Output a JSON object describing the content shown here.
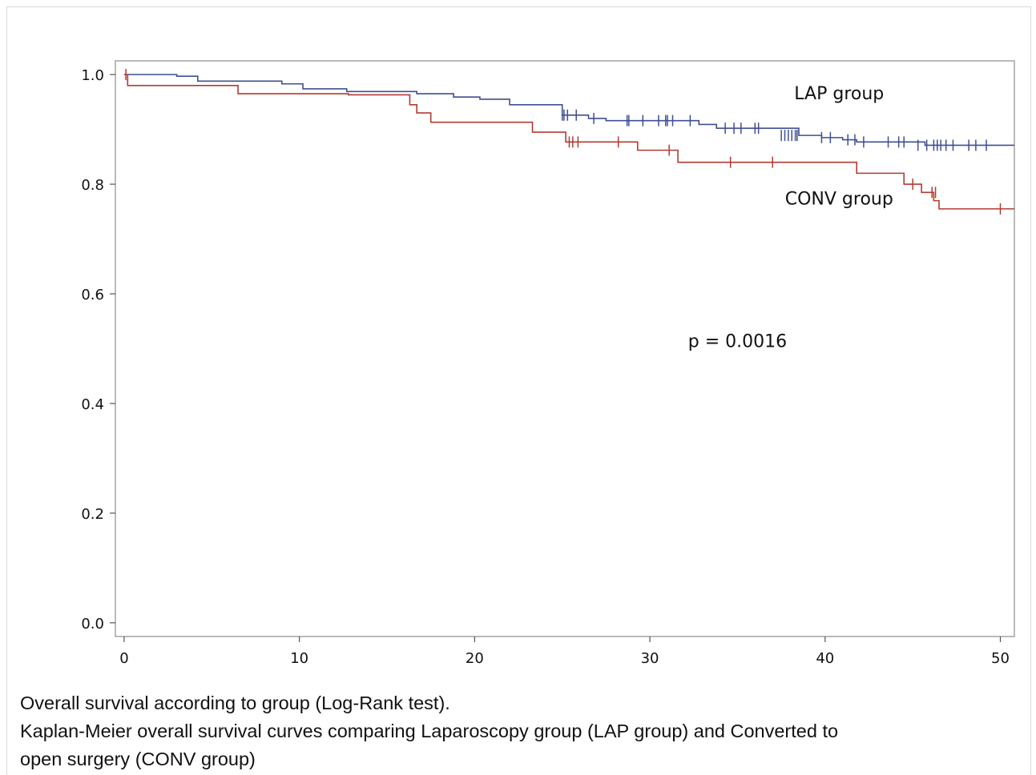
{
  "chart_data": {
    "type": "line",
    "title": "",
    "xlabel": "",
    "ylabel": "",
    "xlim": [
      -0.5,
      50.8
    ],
    "ylim": [
      -0.025,
      1.025
    ],
    "xticks": [
      0,
      10,
      20,
      30,
      40,
      50
    ],
    "yticks": [
      0.0,
      0.2,
      0.4,
      0.6,
      0.8,
      1.0
    ],
    "xtick_labels": [
      "0",
      "10",
      "20",
      "30",
      "40",
      "50"
    ],
    "ytick_labels": [
      "0.0",
      "0.2",
      "0.4",
      "0.6",
      "0.8",
      "1.0"
    ],
    "grid": false,
    "step": true,
    "series": [
      {
        "name": "LAP group",
        "color": "#3f4f93",
        "x": [
          0,
          3,
          4.2,
          9,
          10.2,
          12.7,
          16.7,
          18.8,
          20.3,
          22,
          25,
          26.5,
          27.5,
          32.8,
          33.8,
          38.5,
          39.8,
          41,
          41.8,
          45.7,
          50.8
        ],
        "y": [
          1.0,
          0.997,
          0.988,
          0.983,
          0.974,
          0.969,
          0.965,
          0.959,
          0.955,
          0.945,
          0.926,
          0.92,
          0.916,
          0.909,
          0.902,
          0.889,
          0.885,
          0.881,
          0.877,
          0.871,
          0.871
        ],
        "censor_x": [
          25,
          25.1,
          25.3,
          25.8,
          26.8,
          28.7,
          28.8,
          29.6,
          30.5,
          30.9,
          31.0,
          31.3,
          32.3,
          34.3,
          34.8,
          35.2,
          36.0,
          36.2,
          37.5,
          37.7,
          37.9,
          38.1,
          38.3,
          38.4,
          39.8,
          40.3,
          41.3,
          41.7,
          42.2,
          43.6,
          44.2,
          44.5,
          45.3,
          45.8,
          46.2,
          46.4,
          46.6,
          46.9,
          47.3,
          48.2,
          48.6,
          49.2
        ],
        "censor_y": [
          0.926,
          0.926,
          0.926,
          0.926,
          0.92,
          0.916,
          0.916,
          0.916,
          0.916,
          0.916,
          0.916,
          0.916,
          0.916,
          0.902,
          0.902,
          0.902,
          0.902,
          0.902,
          0.889,
          0.889,
          0.889,
          0.889,
          0.889,
          0.889,
          0.885,
          0.885,
          0.881,
          0.881,
          0.877,
          0.877,
          0.877,
          0.877,
          0.871,
          0.871,
          0.871,
          0.871,
          0.871,
          0.871,
          0.871,
          0.871,
          0.871,
          0.871
        ]
      },
      {
        "name": "CONV group",
        "color": "#b23a32",
        "x": [
          0,
          0.2,
          6.5,
          12.8,
          16.3,
          16.7,
          17.5,
          23.3,
          25.2,
          26.5,
          29.3,
          31.6,
          41.8,
          44.5,
          45.5,
          46.2,
          46.5,
          50.8
        ],
        "y": [
          1.0,
          0.98,
          0.965,
          0.963,
          0.945,
          0.93,
          0.913,
          0.895,
          0.877,
          0.877,
          0.862,
          0.84,
          0.82,
          0.8,
          0.785,
          0.77,
          0.755,
          0.755
        ],
        "censor_x": [
          0.1,
          25.4,
          25.6,
          25.9,
          28.2,
          31.1,
          34.6,
          37.0,
          45.0,
          46.1,
          46.3,
          50.0
        ],
        "censor_y": [
          1.0,
          0.877,
          0.877,
          0.877,
          0.877,
          0.862,
          0.84,
          0.84,
          0.8,
          0.785,
          0.785,
          0.755
        ]
      }
    ],
    "annotations": [
      {
        "text": "LAP group",
        "x": 40.8,
        "y": 0.955
      },
      {
        "text": "CONV group",
        "x": 40.8,
        "y": 0.763
      },
      {
        "text": "p = 0.0016",
        "x": 35.0,
        "y": 0.503
      }
    ]
  },
  "caption": {
    "line1": "Overall survival according to group (Log-Rank test).",
    "line2": "Kaplan-Meier overall survival curves comparing Laparoscopy group (LAP group) and Converted to",
    "line3": "open surgery (CONV group)"
  }
}
